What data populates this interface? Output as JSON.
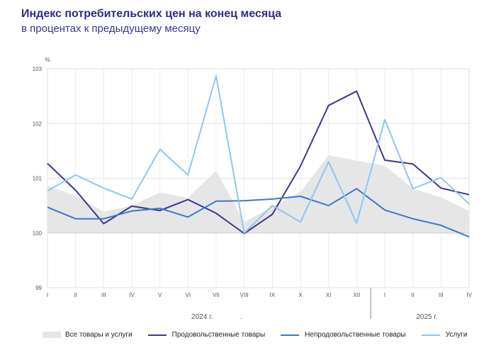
{
  "header": {
    "title": "Индекс потребительских цен на конец месяца",
    "subtitle": "в процентах к предыдущему месяцу"
  },
  "chart_data": {
    "type": "line",
    "ylabel": "%",
    "ylim": [
      99,
      103
    ],
    "yticks": [
      "99",
      "100",
      "101",
      "102",
      "103"
    ],
    "categories": [
      "I",
      "II",
      "III",
      "IV",
      "V",
      "VI",
      "VII",
      "VIII",
      "IX",
      "X",
      "XI",
      "XII",
      "I",
      "II",
      "III",
      "IV"
    ],
    "year_labels": [
      {
        "label": "2024 г.",
        "start_index": 0,
        "end_index": 11
      },
      {
        "label": "2025 г.",
        "start_index": 12,
        "end_index": 15
      }
    ],
    "year_label_extra": ".",
    "grid": true,
    "series": [
      {
        "name": "Все товары и услуги",
        "kind": "area",
        "color": "#e6e6e6",
        "values": [
          100.86,
          100.68,
          100.39,
          100.5,
          100.74,
          100.64,
          101.14,
          100.2,
          100.48,
          100.75,
          101.42,
          101.32,
          101.23,
          100.81,
          100.65,
          100.4
        ]
      },
      {
        "name": "Продовольственные товары",
        "kind": "line",
        "color": "#3f3591",
        "values": [
          101.27,
          100.78,
          100.17,
          100.49,
          100.41,
          100.61,
          100.36,
          99.99,
          100.34,
          101.22,
          102.33,
          102.59,
          101.33,
          101.26,
          100.82,
          100.7
        ]
      },
      {
        "name": "Непродовольственные товары",
        "kind": "line",
        "color": "#3b79c6",
        "values": [
          100.47,
          100.26,
          100.26,
          100.4,
          100.45,
          100.29,
          100.58,
          100.59,
          100.62,
          100.67,
          100.5,
          100.81,
          100.42,
          100.26,
          100.14,
          99.93
        ]
      },
      {
        "name": "Услуги",
        "kind": "line",
        "color": "#8ec6f5",
        "values": [
          100.77,
          101.06,
          100.82,
          100.62,
          101.53,
          101.06,
          102.87,
          100.0,
          100.5,
          100.2,
          101.3,
          100.18,
          102.07,
          100.81,
          101.01,
          100.53
        ]
      }
    ]
  }
}
